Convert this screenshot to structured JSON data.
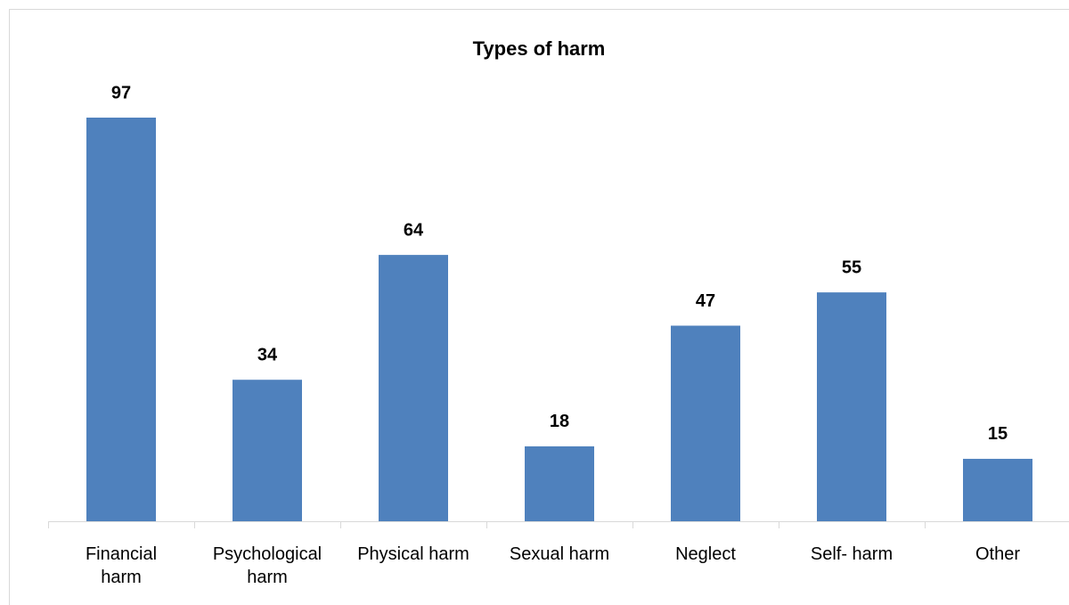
{
  "chart_data": {
    "type": "bar",
    "title": "Types of harm",
    "categories": [
      "Financial harm",
      "Psychological harm",
      "Physical harm",
      "Sexual harm",
      "Neglect",
      "Self- harm",
      "Other"
    ],
    "values": [
      97,
      34,
      64,
      18,
      47,
      55,
      15
    ],
    "color": "#4f81bd"
  }
}
